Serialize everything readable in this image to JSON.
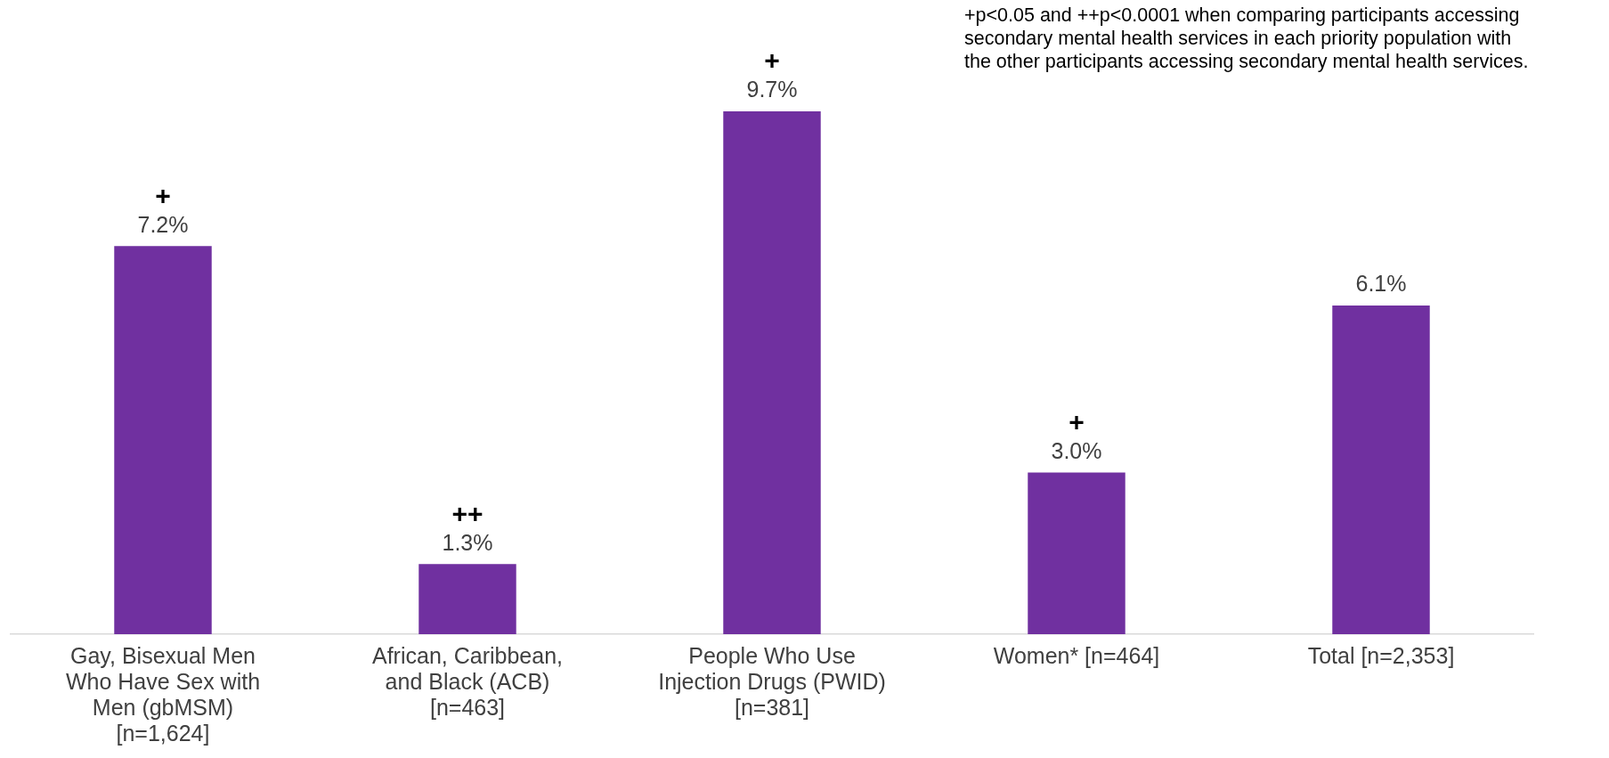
{
  "chart_data": {
    "type": "bar",
    "categories": [
      "Gay, Bisexual Men Who Have Sex with Men (gbMSM) [n=1,624]",
      "African, Caribbean, and Black (ACB) [n=463]",
      "People Who Use Injection Drugs (PWID) [n=381]",
      "Women* [n=464]",
      "Total [n=2,353]"
    ],
    "values": [
      7.2,
      1.3,
      9.7,
      3.0,
      6.1
    ],
    "value_labels": [
      "7.2%",
      "1.3%",
      "9.7%",
      "3.0%",
      "6.1%"
    ],
    "color": "#7030a0",
    "grid": false,
    "legend": false,
    "tick_labels": "x",
    "annotations": [
      {
        "text": "+",
        "x": "Gay, Bisexual Men Who Have Sex with Men (gbMSM) [n=1,624]",
        "y": 7.2
      },
      {
        "text": "++",
        "x": "African, Caribbean, and Black (ACB) [n=463]",
        "y": 1.3
      },
      {
        "text": "+",
        "x": "People Who Use Injection Drugs (PWID) [n=381]",
        "y": 9.7
      },
      {
        "text": "+",
        "x": "Women* [n=464]",
        "y": 3.0
      },
      "+p<0.05 and ++p<0.0001 when comparing participants accessing secondary mental health services in each priority population with the other participants accessing secondary mental health services."
    ]
  }
}
